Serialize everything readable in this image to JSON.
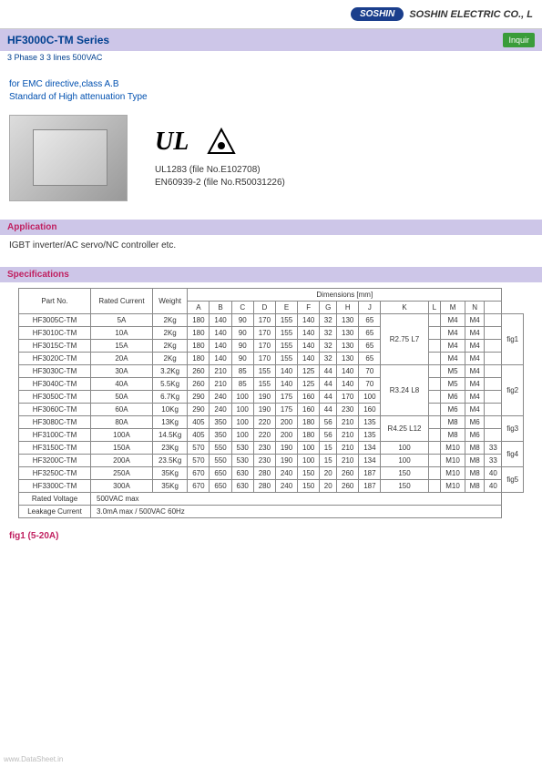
{
  "header": {
    "logo_text": "SOSHIN",
    "company": "SOSHIN ELECTRIC CO., L"
  },
  "title": {
    "series": "HF3000C-TM Series",
    "subtitle": "3 Phase 3 3 lines 500VAC",
    "inquire": "Inquir"
  },
  "description": {
    "line1": "for EMC directive,class A.B",
    "line2": "Standard of High attenuation Type"
  },
  "cert": {
    "ul": "UL1283 (file No.E102708)",
    "en": "EN60939-2 (file No.R50031226)"
  },
  "sections": {
    "application": "Application",
    "specifications": "Specifications"
  },
  "application_text": "IGBT inverter/AC servo/NC controller etc.",
  "table": {
    "headers": {
      "part_no": "Part No.",
      "rated_current": "Rated Current",
      "weight": "Weight",
      "dimensions": "Dimensions [mm]",
      "cols": [
        "A",
        "B",
        "C",
        "D",
        "E",
        "F",
        "G",
        "H",
        "J",
        "K",
        "L",
        "M",
        "N"
      ]
    },
    "rows": [
      {
        "part": "HF3005C-TM",
        "current": "5A",
        "weight": "2Kg",
        "dims": [
          "180",
          "140",
          "90",
          "170",
          "155",
          "140",
          "32",
          "130",
          "65"
        ],
        "k": "R2.75 L7",
        "l": "",
        "m": "M4",
        "m2": "M4",
        "n": "",
        "fig": "fig1"
      },
      {
        "part": "HF3010C-TM",
        "current": "10A",
        "weight": "2Kg",
        "dims": [
          "180",
          "140",
          "90",
          "170",
          "155",
          "140",
          "32",
          "130",
          "65"
        ],
        "k": "",
        "l": "",
        "m": "M4",
        "m2": "M4",
        "n": "",
        "fig": ""
      },
      {
        "part": "HF3015C-TM",
        "current": "15A",
        "weight": "2Kg",
        "dims": [
          "180",
          "140",
          "90",
          "170",
          "155",
          "140",
          "32",
          "130",
          "65"
        ],
        "k": "",
        "l": "",
        "m": "M4",
        "m2": "M4",
        "n": "",
        "fig": ""
      },
      {
        "part": "HF3020C-TM",
        "current": "20A",
        "weight": "2Kg",
        "dims": [
          "180",
          "140",
          "90",
          "170",
          "155",
          "140",
          "32",
          "130",
          "65"
        ],
        "k": "",
        "l": "",
        "m": "M4",
        "m2": "M4",
        "n": "",
        "fig": ""
      },
      {
        "part": "HF3030C-TM",
        "current": "30A",
        "weight": "3.2Kg",
        "dims": [
          "260",
          "210",
          "85",
          "155",
          "140",
          "125",
          "44",
          "140",
          "70"
        ],
        "k": "R3.24 L8",
        "l": "",
        "m": "M5",
        "m2": "M4",
        "n": "",
        "fig": "fig2"
      },
      {
        "part": "HF3040C-TM",
        "current": "40A",
        "weight": "5.5Kg",
        "dims": [
          "260",
          "210",
          "85",
          "155",
          "140",
          "125",
          "44",
          "140",
          "70"
        ],
        "k": "",
        "l": "",
        "m": "M5",
        "m2": "M4",
        "n": "",
        "fig": ""
      },
      {
        "part": "HF3050C-TM",
        "current": "50A",
        "weight": "6.7Kg",
        "dims": [
          "290",
          "240",
          "100",
          "190",
          "175",
          "160",
          "44",
          "170",
          "100"
        ],
        "k": "",
        "l": "",
        "m": "M6",
        "m2": "M4",
        "n": "",
        "fig": ""
      },
      {
        "part": "HF3060C-TM",
        "current": "60A",
        "weight": "10Kg",
        "dims": [
          "290",
          "240",
          "100",
          "190",
          "175",
          "160",
          "44",
          "230",
          "160"
        ],
        "k": "",
        "l": "",
        "m": "M6",
        "m2": "M4",
        "n": "",
        "fig": ""
      },
      {
        "part": "HF3080C-TM",
        "current": "80A",
        "weight": "13Kg",
        "dims": [
          "405",
          "350",
          "100",
          "220",
          "200",
          "180",
          "56",
          "210",
          "135"
        ],
        "k": "R4.25 L12",
        "l": "",
        "m": "M8",
        "m2": "M6",
        "n": "",
        "fig": "fig3"
      },
      {
        "part": "HF3100C-TM",
        "current": "100A",
        "weight": "14.5Kg",
        "dims": [
          "405",
          "350",
          "100",
          "220",
          "200",
          "180",
          "56",
          "210",
          "135"
        ],
        "k": "",
        "l": "",
        "m": "M8",
        "m2": "M6",
        "n": "",
        "fig": ""
      },
      {
        "part": "HF3150C-TM",
        "current": "150A",
        "weight": "23Kg",
        "dims": [
          "570",
          "550",
          "530",
          "230",
          "190",
          "100",
          "15",
          "210",
          "134"
        ],
        "k": "100",
        "l": "",
        "m": "M10",
        "m2": "M8",
        "n": "33",
        "fig": "fig4"
      },
      {
        "part": "HF3200C-TM",
        "current": "200A",
        "weight": "23.5Kg",
        "dims": [
          "570",
          "550",
          "530",
          "230",
          "190",
          "100",
          "15",
          "210",
          "134"
        ],
        "k": "100",
        "l": "",
        "m": "M10",
        "m2": "M8",
        "n": "33",
        "fig": ""
      },
      {
        "part": "HF3250C-TM",
        "current": "250A",
        "weight": "35Kg",
        "dims": [
          "670",
          "650",
          "630",
          "280",
          "240",
          "150",
          "20",
          "260",
          "187"
        ],
        "k": "150",
        "l": "",
        "m": "M10",
        "m2": "M8",
        "n": "40",
        "fig": "fig5"
      },
      {
        "part": "HF3300C-TM",
        "current": "300A",
        "weight": "35Kg",
        "dims": [
          "670",
          "650",
          "630",
          "280",
          "240",
          "150",
          "20",
          "260",
          "187"
        ],
        "k": "150",
        "l": "",
        "m": "M10",
        "m2": "M8",
        "n": "40",
        "fig": ""
      }
    ],
    "rated_voltage_label": "Rated Voltage",
    "rated_voltage": "500VAC max",
    "leakage_label": "Leakage Current",
    "leakage": "3.0mA max / 500VAC 60Hz"
  },
  "fig_label": "fig1 (5-20A)",
  "watermark": "www.DataSheet.in"
}
